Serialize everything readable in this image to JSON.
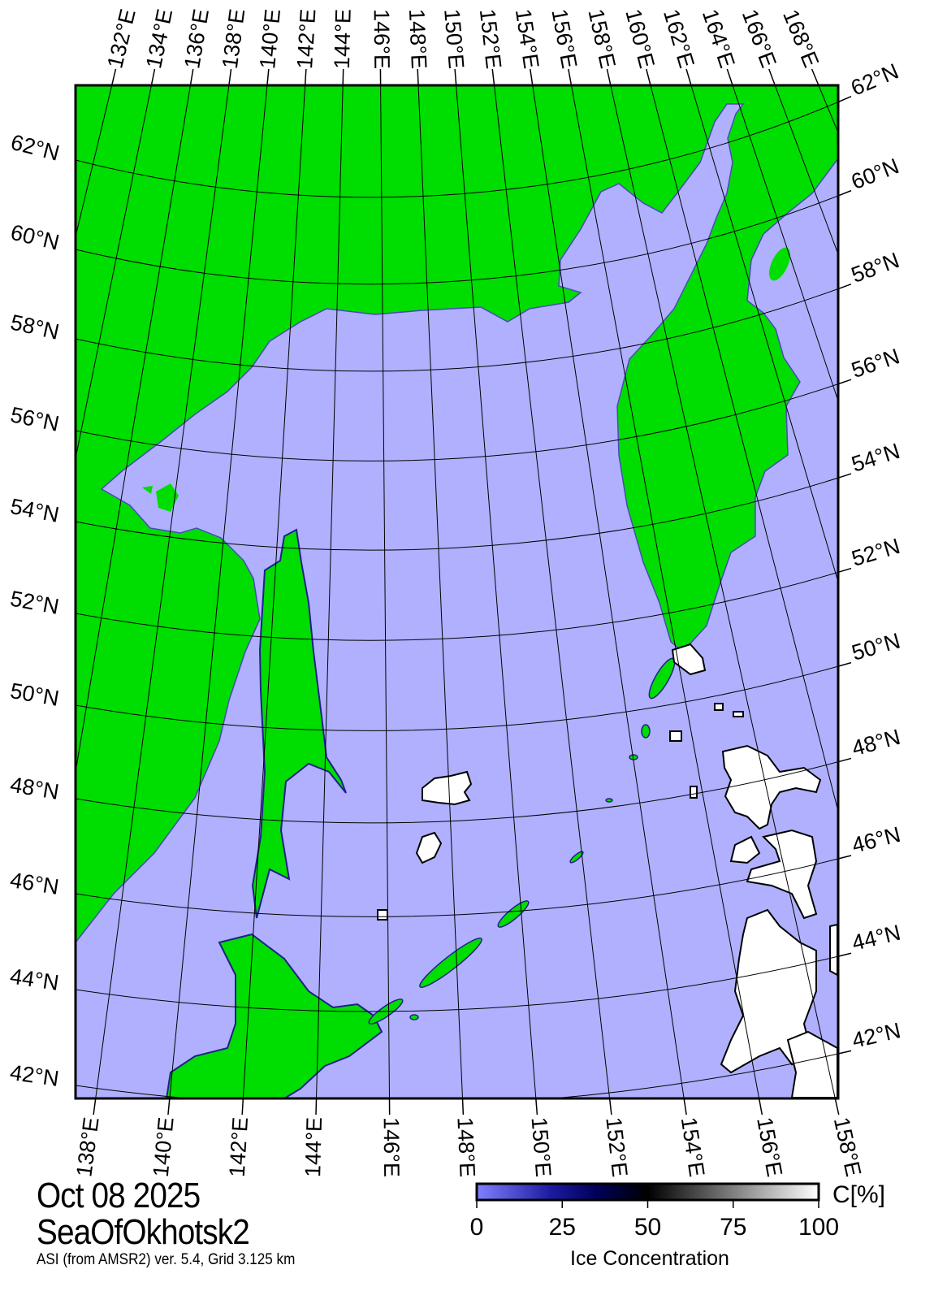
{
  "header": {
    "date": "Oct 08 2025",
    "region": "SeaOfOkhotsk2",
    "source": "ASI (from AMSR2) ver. 5.4,  Grid 3.125 km"
  },
  "colors": {
    "land": "#00dd00",
    "open_water": "#b0b0ff",
    "ice_full": "#ffffff",
    "grid": "#000000"
  },
  "grid": {
    "top_lon_labels": [
      "132°E",
      "134°E",
      "136°E",
      "138°E",
      "140°E",
      "142°E",
      "144°E",
      "146°E",
      "148°E",
      "150°E",
      "152°E",
      "154°E",
      "156°E",
      "158°E",
      "160°E",
      "162°E",
      "164°E",
      "166°E",
      "168°E"
    ],
    "bottom_lon_labels": [
      "138°E",
      "140°E",
      "142°E",
      "144°E",
      "146°E",
      "148°E",
      "150°E",
      "152°E",
      "154°E",
      "156°E",
      "158°E"
    ],
    "left_lat_labels": [
      "62°N",
      "60°N",
      "58°N",
      "56°N",
      "54°N",
      "52°N",
      "50°N",
      "48°N",
      "46°N",
      "44°N",
      "42°N"
    ],
    "right_lat_labels": [
      "62°N",
      "60°N",
      "58°N",
      "56°N",
      "54°N",
      "52°N",
      "50°N",
      "48°N",
      "46°N",
      "44°N",
      "42°N"
    ]
  },
  "colorbar": {
    "title": "Ice Concentration",
    "unit": "C[%]",
    "ticks": [
      "0",
      "25",
      "50",
      "75",
      "100"
    ],
    "range": [
      0,
      100
    ]
  }
}
